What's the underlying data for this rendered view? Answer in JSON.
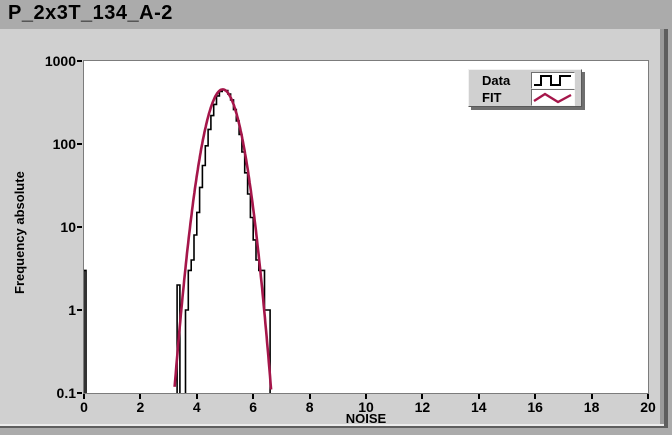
{
  "title": "P_2x3T_134_A-2",
  "legend": {
    "items": [
      {
        "label": "Data",
        "glyph": "step-line-icon",
        "color": "#000000"
      },
      {
        "label": "FIT",
        "glyph": "zigzag-line-icon",
        "color": "#a5164a"
      }
    ]
  },
  "chart_data": {
    "type": "bar",
    "subtype": "histogram-outline-with-fit",
    "title": "P_2x3T_134_A-2",
    "xlabel": "NOISE",
    "ylabel": "Frequency absolute",
    "x_axis": {
      "min": 0,
      "max": 20,
      "ticks": [
        0,
        2,
        4,
        6,
        8,
        10,
        12,
        14,
        16,
        18,
        20
      ]
    },
    "y_axis": {
      "scale": "log",
      "min": 0.1,
      "max": 1000,
      "floor": 0.1,
      "ticks": [
        {
          "label": "1000",
          "value": 1000
        },
        {
          "label": "100",
          "value": 100
        },
        {
          "label": "10",
          "value": 10
        },
        {
          "label": "1",
          "value": 1
        },
        {
          "label": "0.1",
          "value": 0.1
        }
      ]
    },
    "grid": false,
    "legend_position": "top-right-inside",
    "histogram": {
      "color": "#000000",
      "groups": [
        {
          "start": 0.0,
          "bin_width": 0.07,
          "counts": [
            3
          ]
        },
        {
          "start": 3.3,
          "bin_width": 0.1,
          "counts": [
            2
          ]
        },
        {
          "start": 3.6,
          "bin_width": 0.1,
          "counts": [
            1,
            3,
            4,
            8,
            15,
            30,
            55,
            95,
            150,
            220,
            300,
            380,
            430,
            450,
            440,
            400,
            340,
            260,
            190,
            130,
            80,
            45,
            25,
            13,
            7,
            4,
            3,
            3,
            1,
            1
          ]
        }
      ]
    },
    "fit": {
      "model": "gaussian",
      "amplitude": 455,
      "mean": 4.92,
      "sigma": 0.42,
      "color": "#a5164a"
    }
  }
}
